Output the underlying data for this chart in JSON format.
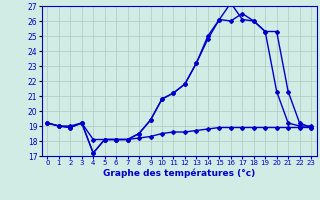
{
  "xlabel": "Graphe des températures (°c)",
  "x": [
    0,
    1,
    2,
    3,
    4,
    5,
    6,
    7,
    8,
    9,
    10,
    11,
    12,
    13,
    14,
    15,
    16,
    17,
    18,
    19,
    20,
    21,
    22,
    23
  ],
  "line1": [
    19.2,
    19.0,
    18.9,
    19.2,
    17.2,
    18.1,
    18.1,
    18.1,
    18.5,
    19.4,
    20.8,
    21.2,
    21.8,
    23.2,
    25.0,
    26.1,
    27.2,
    26.1,
    26.0,
    25.3,
    21.3,
    19.2,
    19.0,
    19.0
  ],
  "line2": [
    19.2,
    19.0,
    18.9,
    19.2,
    17.2,
    18.1,
    18.1,
    18.1,
    18.5,
    19.4,
    20.8,
    21.2,
    21.8,
    23.2,
    24.8,
    26.1,
    26.0,
    26.5,
    26.0,
    25.3,
    25.3,
    21.3,
    19.2,
    18.9
  ],
  "line3": [
    19.2,
    19.0,
    19.0,
    19.2,
    18.1,
    18.1,
    18.1,
    18.1,
    18.2,
    18.3,
    18.5,
    18.6,
    18.6,
    18.7,
    18.8,
    18.9,
    18.9,
    18.9,
    18.9,
    18.9,
    18.9,
    18.9,
    18.9,
    18.9
  ],
  "line_color": "#0000cc",
  "bg_color": "#d0ece4",
  "grid_color": "#b0c8c0",
  "ylim": [
    17,
    27
  ],
  "yticks": [
    17,
    18,
    19,
    20,
    21,
    22,
    23,
    24,
    25,
    26,
    27
  ],
  "xtick_labels": [
    "0",
    "1",
    "2",
    "3",
    "4",
    "5",
    "6",
    "7",
    "8",
    "9",
    "10",
    "11",
    "12",
    "13",
    "14",
    "15",
    "16",
    "17",
    "18",
    "19",
    "20",
    "21",
    "22",
    "23"
  ],
  "marker": "D",
  "markersize": 2.0,
  "linewidth": 1.0
}
